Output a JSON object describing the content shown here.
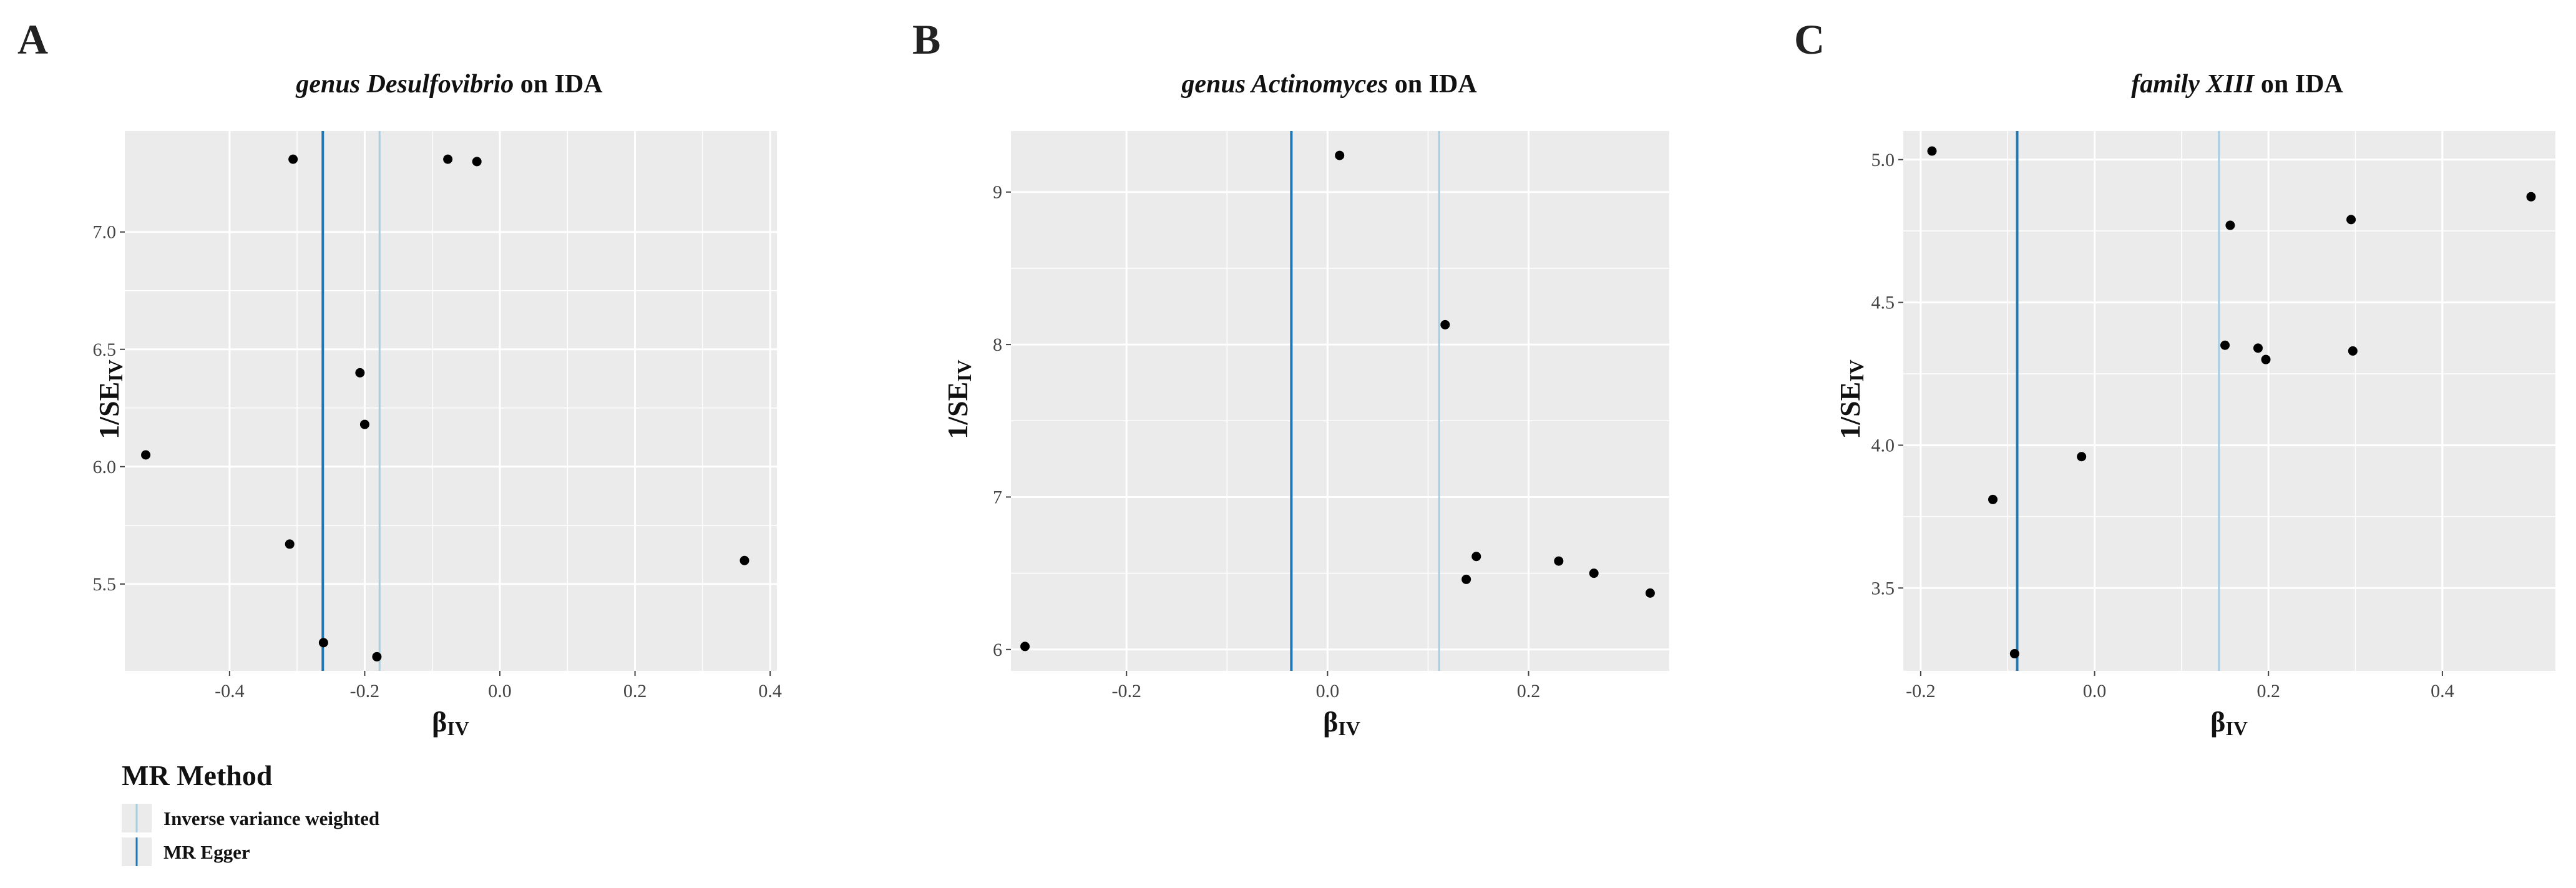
{
  "colors": {
    "panel_bg": "#EBEBEB",
    "grid": "#FFFFFF",
    "ivw_line": "#A6CEE3",
    "egger_line": "#1F78B4",
    "point": "#000000"
  },
  "legend": {
    "title": "MR Method",
    "items": [
      {
        "label": "Inverse variance weighted",
        "color": "#A6CEE3"
      },
      {
        "label": "MR Egger",
        "color": "#1F78B4"
      }
    ]
  },
  "chart_data": [
    {
      "type": "scatter",
      "panel": "A",
      "title_italic": "genus Desulfovibrio",
      "title_rest": " on IDA",
      "xlabel_main": "β",
      "xlabel_sub": "IV",
      "ylabel_main": "1/SE",
      "ylabel_sub": "IV",
      "xlim": [
        -0.555,
        0.41
      ],
      "ylim": [
        5.13,
        7.43
      ],
      "xticks": [
        -0.4,
        -0.2,
        0.0,
        0.2,
        0.4
      ],
      "xtick_labels": [
        "-0.4",
        "-0.2",
        "0.0",
        "0.2",
        "0.4"
      ],
      "yticks": [
        5.5,
        6.0,
        6.5,
        7.0
      ],
      "ytick_labels": [
        "5.5",
        "6.0",
        "6.5",
        "7.0"
      ],
      "ivw_beta": -0.178,
      "egger_beta": -0.262,
      "points": [
        {
          "x": -0.524,
          "y": 6.05
        },
        {
          "x": -0.311,
          "y": 5.67
        },
        {
          "x": -0.306,
          "y": 7.31
        },
        {
          "x": -0.261,
          "y": 5.25
        },
        {
          "x": -0.207,
          "y": 6.4
        },
        {
          "x": -0.2,
          "y": 6.18
        },
        {
          "x": -0.182,
          "y": 5.19
        },
        {
          "x": -0.077,
          "y": 7.31
        },
        {
          "x": -0.034,
          "y": 7.3
        },
        {
          "x": 0.362,
          "y": 5.6
        }
      ]
    },
    {
      "type": "scatter",
      "panel": "B",
      "title_italic": "genus Actinomyces",
      "title_rest": " on IDA",
      "xlabel_main": "β",
      "xlabel_sub": "IV",
      "ylabel_main": "1/SE",
      "ylabel_sub": "IV",
      "xlim": [
        -0.315,
        0.34
      ],
      "ylim": [
        5.86,
        9.4
      ],
      "xticks": [
        -0.2,
        0.0,
        0.2
      ],
      "xtick_labels": [
        "-0.2",
        "0.0",
        "0.2"
      ],
      "yticks": [
        6,
        7,
        8,
        9
      ],
      "ytick_labels": [
        "6",
        "7",
        "8",
        "9"
      ],
      "ivw_beta": 0.111,
      "egger_beta": -0.036,
      "points": [
        {
          "x": -0.301,
          "y": 6.02
        },
        {
          "x": 0.012,
          "y": 9.24
        },
        {
          "x": 0.117,
          "y": 8.13
        },
        {
          "x": 0.138,
          "y": 6.46
        },
        {
          "x": 0.148,
          "y": 6.61
        },
        {
          "x": 0.23,
          "y": 6.58
        },
        {
          "x": 0.265,
          "y": 6.5
        },
        {
          "x": 0.321,
          "y": 6.37
        }
      ]
    },
    {
      "type": "scatter",
      "panel": "C",
      "title_italic": "family XIII",
      "title_rest": " on IDA",
      "xlabel_main": "β",
      "xlabel_sub": "IV",
      "ylabel_main": "1/SE",
      "ylabel_sub": "IV",
      "xlim": [
        -0.22,
        0.53
      ],
      "ylim": [
        3.21,
        5.1
      ],
      "xticks": [
        -0.2,
        0.0,
        0.2,
        0.4
      ],
      "xtick_labels": [
        "-0.2",
        "0.0",
        "0.2",
        "0.4"
      ],
      "yticks": [
        3.5,
        4.0,
        4.5,
        5.0
      ],
      "ytick_labels": [
        "3.5",
        "4.0",
        "4.5",
        "5.0"
      ],
      "ivw_beta": 0.143,
      "egger_beta": -0.089,
      "points": [
        {
          "x": -0.187,
          "y": 5.03
        },
        {
          "x": -0.117,
          "y": 3.81
        },
        {
          "x": -0.092,
          "y": 3.27
        },
        {
          "x": -0.015,
          "y": 3.96
        },
        {
          "x": 0.15,
          "y": 4.35
        },
        {
          "x": 0.156,
          "y": 4.77
        },
        {
          "x": 0.188,
          "y": 4.34
        },
        {
          "x": 0.197,
          "y": 4.3
        },
        {
          "x": 0.295,
          "y": 4.79
        },
        {
          "x": 0.297,
          "y": 4.33
        },
        {
          "x": 0.502,
          "y": 4.87
        }
      ]
    }
  ]
}
